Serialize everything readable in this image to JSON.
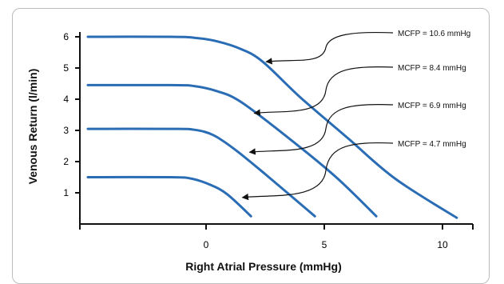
{
  "chart_data": {
    "type": "line",
    "title": "",
    "xlabel": "Right Atrial Pressure (mmHg)",
    "ylabel": "Venous Return (l/min)",
    "xlim": [
      -5,
      11
    ],
    "ylim": [
      0,
      6.5
    ],
    "xticks": [
      0,
      5,
      10
    ],
    "yticks": [
      1,
      2,
      3,
      4,
      5,
      6
    ],
    "grid": false,
    "colors": {
      "line": "#2a6db5",
      "axis": "#111111",
      "arrow": "#111111"
    },
    "series": [
      {
        "name": "MCFP = 10.6 mmHg",
        "mcfp": 10.6,
        "plateau": 6.0,
        "x": [
          -5,
          -1.5,
          -0.5,
          0.5,
          1.5,
          2.4,
          4.0,
          6.0,
          8.0,
          10.6
        ],
        "y": [
          6.0,
          6.0,
          5.97,
          5.85,
          5.6,
          5.2,
          4.05,
          2.75,
          1.45,
          0.2
        ]
      },
      {
        "name": "MCFP = 8.4 mmHg",
        "mcfp": 8.4,
        "plateau": 4.45,
        "x": [
          -5,
          -1.5,
          -0.5,
          0.5,
          1.5,
          3.5,
          5.5,
          7.2
        ],
        "y": [
          4.45,
          4.45,
          4.42,
          4.25,
          3.9,
          2.75,
          1.5,
          0.25
        ]
      },
      {
        "name": "MCFP = 6.9 mmHg",
        "mcfp": 6.9,
        "plateau": 3.05,
        "x": [
          -5,
          -1.5,
          -0.5,
          0.3,
          1.2,
          2.5,
          4.6
        ],
        "y": [
          3.05,
          3.05,
          3.02,
          2.85,
          2.4,
          1.6,
          0.25
        ]
      },
      {
        "name": "MCFP = 4.7 mmHg",
        "mcfp": 4.7,
        "plateau": 1.5,
        "x": [
          -5,
          -1.5,
          -0.6,
          0.2,
          0.9,
          1.9
        ],
        "y": [
          1.5,
          1.5,
          1.45,
          1.25,
          0.95,
          0.25
        ]
      }
    ],
    "annotations": [
      {
        "text": "MCFP = 10.6 mmHg",
        "series": 0,
        "target": [
          2.4,
          5.2
        ]
      },
      {
        "text": "MCFP = 8.4 mmHg",
        "series": 1,
        "target": [
          1.9,
          3.55
        ]
      },
      {
        "text": "MCFP = 6.9 mmHg",
        "series": 2,
        "target": [
          1.7,
          2.3
        ]
      },
      {
        "text": "MCFP = 4.7 mmHg",
        "series": 3,
        "target": [
          1.4,
          0.85
        ]
      }
    ]
  }
}
